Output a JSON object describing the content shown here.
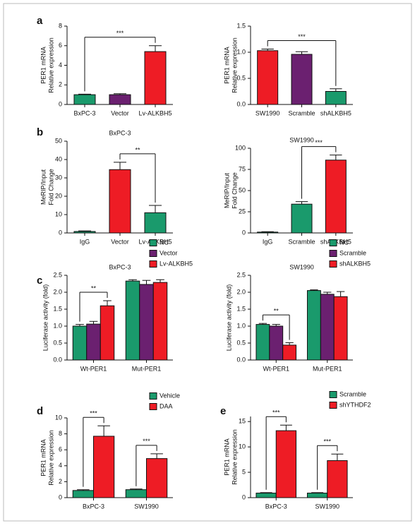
{
  "panel_labels": [
    "a",
    "b",
    "c",
    "d",
    "e"
  ],
  "chart_data": [
    {
      "type": "bar",
      "categories": [
        "BxPC-3",
        "Vector",
        "Lv-ALKBH5"
      ],
      "values": [
        1.0,
        1.0,
        5.4
      ],
      "errors": [
        0.05,
        0.1,
        0.6
      ],
      "colors": [
        "#1a9a6c",
        "#6b2070",
        "#ee1c25"
      ],
      "ylabel": [
        "PER1 mRNA",
        "Relative expression"
      ],
      "ylim": [
        0,
        8
      ],
      "yticks": [
        0,
        2,
        4,
        6,
        8
      ],
      "annotations": [
        {
          "text": "***",
          "between": [
            "BxPC-3",
            "Lv-ALKBH5"
          ]
        }
      ]
    },
    {
      "type": "bar",
      "categories": [
        "SW1990",
        "Scramble",
        "shALKBH5"
      ],
      "values": [
        1.03,
        0.96,
        0.25
      ],
      "errors": [
        0.03,
        0.05,
        0.05
      ],
      "colors": [
        "#ee1c25",
        "#6b2070",
        "#1a9a6c"
      ],
      "ylabel": [
        "PER1 mRNA",
        "Relative expression"
      ],
      "ylim": [
        0,
        1.5
      ],
      "yticks": [
        {
          "value": 0,
          "label": "0.0"
        },
        0.5,
        {
          "value": 1,
          "label": "1.0"
        },
        1.5
      ],
      "annotations": [
        {
          "text": "***",
          "between": [
            "SW1990",
            "shALKBH5"
          ]
        }
      ]
    },
    {
      "type": "bar",
      "title": "BxPC-3",
      "categories": [
        "IgG",
        "Vector",
        "Lv-ALKBH5"
      ],
      "values": [
        0.8,
        34.5,
        11
      ],
      "errors": [
        0.3,
        4,
        4
      ],
      "colors": [
        "#1a9a6c",
        "#ee1c25",
        "#1a9a6c"
      ],
      "ylabel": [
        "MeRIP/Input",
        "Fold Change"
      ],
      "ylim": [
        0,
        50
      ],
      "yticks": [
        0,
        10,
        20,
        30,
        40,
        50
      ],
      "annotations": [
        {
          "text": "**",
          "between": [
            "Vector",
            "Lv-ALKBH5"
          ]
        }
      ]
    },
    {
      "type": "bar",
      "title": "SW1990",
      "categories": [
        "IgG",
        "Scramble",
        "shALKBH5"
      ],
      "values": [
        1,
        34,
        86
      ],
      "errors": [
        0.5,
        3,
        6
      ],
      "colors": [
        "#1a9a6c",
        "#1a9a6c",
        "#ee1c25"
      ],
      "ylabel": [
        "MeRIP/Input",
        "Fold Change"
      ],
      "ylim": [
        0,
        100
      ],
      "yticks": [
        0,
        25,
        50,
        75,
        100
      ],
      "annotations": [
        {
          "text": "***",
          "between": [
            "Scramble",
            "shALKBH5"
          ]
        }
      ]
    },
    {
      "type": "grouped-bar",
      "title": "BxPC-3",
      "categories": [
        "Wt-PER1",
        "Mut-PER1"
      ],
      "ylabel": [
        "Luciferase activity (fold)"
      ],
      "series": [
        {
          "name": "NC",
          "color": "#1a9a6c",
          "values": [
            1.0,
            2.33
          ],
          "errors": [
            0.05,
            0.04
          ]
        },
        {
          "name": "Vector",
          "color": "#6b2070",
          "values": [
            1.06,
            2.23
          ],
          "errors": [
            0.08,
            0.12
          ]
        },
        {
          "name": "Lv-ALKBH5",
          "color": "#ee1c25",
          "values": [
            1.6,
            2.29
          ],
          "errors": [
            0.15,
            0.08
          ]
        }
      ],
      "ylim": [
        0,
        2.5
      ],
      "yticks": [
        {
          "value": 0,
          "label": "0.0"
        },
        0.5,
        {
          "value": 1,
          "label": "1.0"
        },
        1.5,
        {
          "value": 2,
          "label": "2.0"
        },
        2.5
      ],
      "legend": "above-right",
      "annotations": [
        {
          "text": "**",
          "category": "Wt-PER1",
          "between": [
            "NC",
            "Lv-ALKBH5"
          ]
        }
      ]
    },
    {
      "type": "grouped-bar",
      "title": "SW1990",
      "categories": [
        "Wt-PER1",
        "Mut-PER1"
      ],
      "ylabel": [
        "Luciferase activity (fold)"
      ],
      "series": [
        {
          "name": "NC",
          "color": "#1a9a6c",
          "values": [
            1.05,
            2.05
          ],
          "errors": [
            0.03,
            0.02
          ]
        },
        {
          "name": "Scramble",
          "color": "#6b2070",
          "values": [
            1.0,
            1.94
          ],
          "errors": [
            0.05,
            0.06
          ]
        },
        {
          "name": "shALKBH5",
          "color": "#ee1c25",
          "values": [
            0.44,
            1.87
          ],
          "errors": [
            0.07,
            0.15
          ]
        }
      ],
      "ylim": [
        0,
        2.5
      ],
      "yticks": [
        {
          "value": 0,
          "label": "0.0"
        },
        0.5,
        {
          "value": 1,
          "label": "1.0"
        },
        1.5,
        {
          "value": 2,
          "label": "2.0"
        },
        2.5
      ],
      "legend": "above-right",
      "annotations": [
        {
          "text": "**",
          "category": "Wt-PER1",
          "between": [
            "NC",
            "shALKBH5"
          ]
        }
      ]
    },
    {
      "type": "grouped-bar",
      "categories": [
        "BxPC-3",
        "SW1990"
      ],
      "ylabel": [
        "PER1 mRNA",
        "Relative expression"
      ],
      "series": [
        {
          "name": "Vehicle",
          "color": "#1a9a6c",
          "values": [
            0.9,
            1.0
          ],
          "errors": [
            0.1,
            0.08
          ]
        },
        {
          "name": "DAA",
          "color": "#ee1c25",
          "values": [
            7.7,
            4.9
          ],
          "errors": [
            1.3,
            0.6
          ]
        }
      ],
      "ylim": [
        0,
        10
      ],
      "yticks": [
        0,
        2,
        4,
        6,
        8,
        10
      ],
      "legend": "above-right",
      "annotations": [
        {
          "text": "***",
          "category": "BxPC-3",
          "between": [
            "Vehicle",
            "DAA"
          ]
        },
        {
          "text": "***",
          "category": "SW1990",
          "between": [
            "Vehicle",
            "DAA"
          ]
        }
      ]
    },
    {
      "type": "grouped-bar",
      "categories": [
        "BxPC-3",
        "SW1990"
      ],
      "ylabel": [
        "PER1 mRNA",
        "Relative expression"
      ],
      "series": [
        {
          "name": "Scramble",
          "color": "#1a9a6c",
          "values": [
            0.9,
            0.9
          ],
          "errors": [
            0.1,
            0.1
          ]
        },
        {
          "name": "shYTHDF2",
          "color": "#ee1c25",
          "values": [
            13.2,
            7.3
          ],
          "errors": [
            1.1,
            1.3
          ]
        }
      ],
      "ylim": [
        0,
        16
      ],
      "yticks": [
        0,
        5,
        10,
        15
      ],
      "legend": "above-right",
      "annotations": [
        {
          "text": "***",
          "category": "BxPC-3",
          "between": [
            "Scramble",
            "shYTHDF2"
          ]
        },
        {
          "text": "***",
          "category": "SW1990",
          "between": [
            "Scramble",
            "shYTHDF2"
          ]
        }
      ]
    }
  ]
}
